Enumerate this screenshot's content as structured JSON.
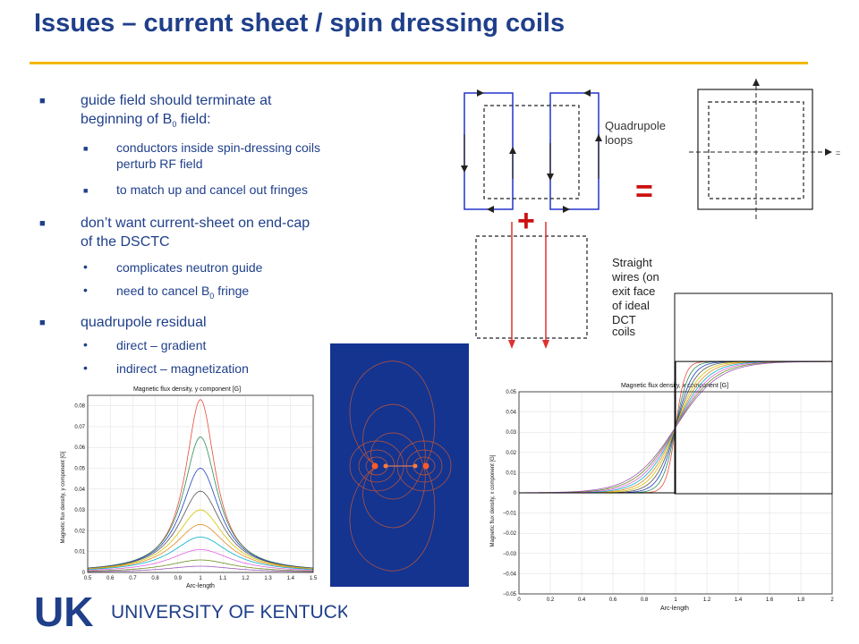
{
  "header": {
    "title": "Issues – current sheet / spin dressing coils"
  },
  "bullets": {
    "b1": {
      "line1": "guide field should terminate at",
      "line2_pre": "beginning of B",
      "line2_sub": "0",
      "line2_post": " field:"
    },
    "b1_sub1": {
      "line1": "conductors inside spin-dressing coils",
      "line2": "perturb RF field"
    },
    "b1_sub2": "to match up and cancel out fringes",
    "b2": {
      "line1": "don’t want current-sheet on end-cap",
      "line2": "of the DSCTC"
    },
    "b2_sub1": "complicates neutron guide",
    "b2_sub2": {
      "pre": "need to cancel B",
      "sub": "0",
      "post": " fringe"
    },
    "b3": "quadrupole residual",
    "b3_sub1": "direct – gradient",
    "b3_sub2": "indirect – magnetization"
  },
  "diagram": {
    "quadrupole_label_1": "Quadrupole",
    "quadrupole_label_2": "loops",
    "plus": "+",
    "equals": "=",
    "straight_label": [
      "Straight",
      "wires (on",
      "exit face",
      "of ideal",
      "DCT",
      "coils"
    ],
    "small_eq": "="
  },
  "plot_left": {
    "title": "Magnetic flux density, y component [G]",
    "ylabel": "Magnetic flux density, y component [G]",
    "xlabel": "Arc-length",
    "yticks": [
      "0",
      "0.01",
      "0.02",
      "0.03",
      "0.04",
      "0.05",
      "0.06",
      "0.07",
      "0.08"
    ],
    "xticks": [
      "0.5",
      "0.6",
      "0.7",
      "0.8",
      "0.9",
      "1",
      "1.1",
      "1.2",
      "1.3",
      "1.4",
      "1.5"
    ],
    "peaks": [
      0.083,
      0.065,
      0.05,
      0.039,
      0.03,
      0.023,
      0.017,
      0.011,
      0.006,
      0.003
    ],
    "colors": [
      "#e74c3c",
      "#2e8b57",
      "#1f3fbf",
      "#555555",
      "#d4c200",
      "#e08a20",
      "#00b0c8",
      "#e060e0",
      "#6b8e23",
      "#9b59b6"
    ]
  },
  "plot_right": {
    "title": "Magnetic flux density, x component [G]",
    "ylabel": "Magnetic flux density, x component [G]",
    "xlabel": "Arc-length",
    "yticks": [
      "−0.05",
      "−0.04",
      "−0.03",
      "−0.02",
      "−0.01",
      "0",
      "0.01",
      "0.02",
      "0.03",
      "0.04",
      "0.05"
    ],
    "xticks": [
      "0",
      "0.2",
      "0.4",
      "0.6",
      "0.8",
      "1",
      "1.2",
      "1.4",
      "1.6",
      "1.8",
      "2"
    ]
  },
  "footer": {
    "logo_mark": "UK",
    "university": "UNIVERSITY OF KENTUCKY"
  },
  "colors": {
    "title": "#1f3f8a",
    "rule": "#f2b700",
    "logo": "#1f3f8a",
    "field_bg": "#14348f"
  }
}
